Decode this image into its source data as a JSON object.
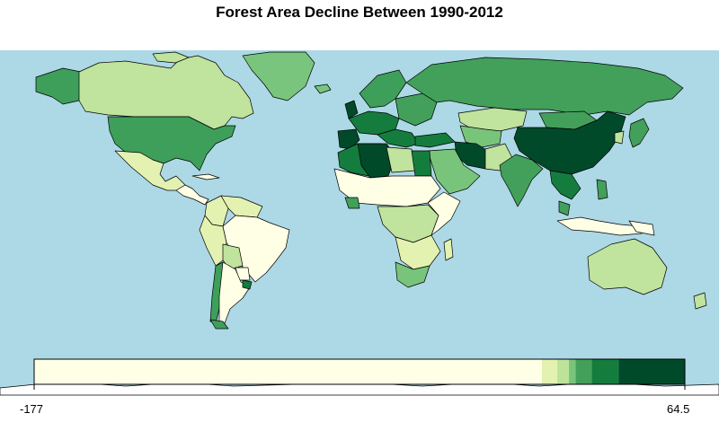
{
  "title": "Forest Area Decline Between 1990-2012",
  "legend": {
    "min_label": "-177",
    "max_label": "64.5",
    "range": [
      -177,
      64.5
    ],
    "breaks": [
      -177,
      11.5,
      17.2,
      21.5,
      24.0,
      30.0,
      40.0,
      64.5
    ],
    "colors": [
      "#ffffe5",
      "#e3f2b0",
      "#bfe29b",
      "#78c47b",
      "#42a05a",
      "#147d3e",
      "#004a2a"
    ]
  },
  "colors": {
    "ocean": "#add8e6",
    "border": "#000000"
  }
}
